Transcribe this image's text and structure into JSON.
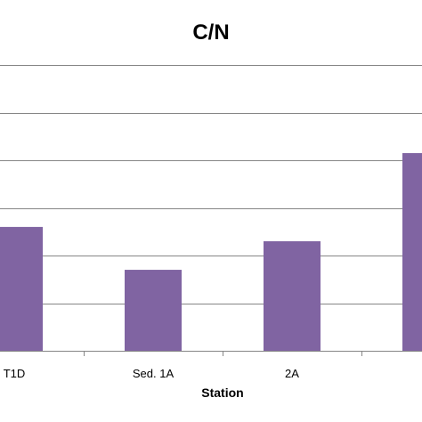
{
  "chart_data": {
    "type": "bar",
    "title": "C/N",
    "xlabel": "Station",
    "ylabel": "",
    "categories": [
      "T1D",
      "Sed. 1A",
      "2A",
      ""
    ],
    "values": [
      5.2,
      3.4,
      4.6,
      8.3
    ],
    "ylim": [
      0,
      12
    ],
    "ytick_step": 2,
    "grid": true,
    "bar_color": "#8064A2",
    "grid_color": "#868686"
  }
}
